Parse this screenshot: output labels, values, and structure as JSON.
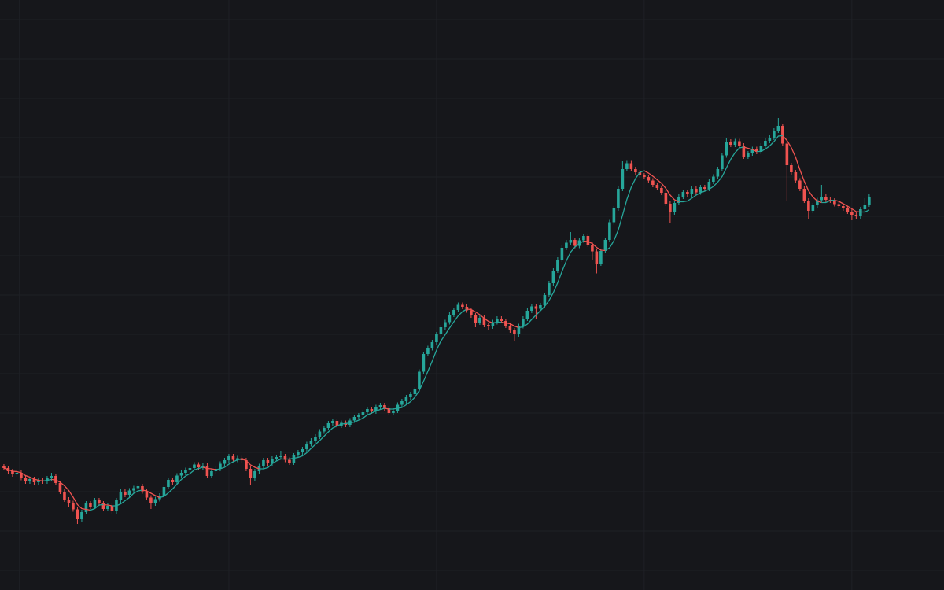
{
  "chart_data": {
    "type": "candlestick",
    "xlim": [
      -0.9,
      217.3
    ],
    "xticks": [
      3.6,
      52,
      100,
      148,
      196
    ],
    "ylim": [
      0,
      150
    ],
    "yticks": [
      5,
      15,
      25,
      35,
      45,
      55,
      65,
      75,
      85,
      95,
      105,
      115,
      125,
      135,
      145
    ],
    "grid": true,
    "background": "#16171b",
    "grid_color": "#1f2126",
    "up_color": "#26a69a",
    "down_color": "#ef5350",
    "open": [
      31.4,
      31.0,
      30.2,
      29.4,
      29.8,
      28.5,
      27.6,
      28.2,
      27.4,
      27.9,
      27.6,
      28.4,
      29.0,
      27.2,
      25.0,
      23.0,
      22.1,
      20.5,
      18.0,
      19.8,
      22.0,
      21.2,
      22.8,
      22.0,
      20.6,
      21.4,
      20.0,
      22.8,
      25.0,
      24.2,
      25.3,
      25.9,
      26.4,
      25.1,
      23.5,
      22.0,
      23.1,
      24.0,
      26.2,
      28.0,
      27.4,
      29.1,
      29.8,
      30.5,
      31.0,
      31.9,
      31.2,
      31.6,
      29.0,
      30.2,
      30.8,
      32.1,
      33.0,
      34.0,
      33.1,
      33.5,
      33.0,
      30.8,
      28.4,
      30.2,
      31.5,
      33.0,
      32.2,
      33.4,
      33.8,
      34.0,
      33.1,
      32.4,
      34.2,
      35.0,
      35.8,
      37.1,
      38.0,
      39.0,
      40.3,
      41.2,
      42.4,
      43.0,
      41.8,
      42.5,
      42.0,
      43.1,
      44.0,
      44.4,
      45.2,
      46.0,
      45.4,
      46.5,
      47.0,
      46.2,
      45.0,
      45.6,
      47.1,
      48.0,
      49.0,
      49.8,
      51.0,
      55.5,
      60.0,
      61.5,
      63.0,
      65.0,
      66.8,
      68.1,
      70.0,
      71.2,
      72.5,
      72.0,
      71.1,
      69.8,
      68.0,
      69.2,
      67.4,
      67.0,
      68.1,
      69.0,
      68.4,
      67.2,
      66.0,
      65.0,
      67.1,
      69.0,
      71.0,
      72.1,
      71.5,
      72.4,
      75.0,
      78.0,
      81.2,
      84.0,
      87.0,
      88.3,
      89.0,
      87.5,
      88.9,
      90.0,
      87.8,
      86.1,
      83.0,
      86.2,
      89.0,
      93.5,
      97.0,
      102.0,
      107.0,
      108.5,
      107.0,
      106.2,
      105.4,
      105.0,
      104.1,
      103.0,
      102.2,
      101.0,
      98.2,
      96.0,
      98.4,
      100.0,
      101.2,
      100.6,
      102.0,
      101.1,
      102.4,
      102.0,
      103.8,
      105.1,
      107.0,
      110.5,
      114.0,
      113.2,
      114.1,
      113.0,
      110.2,
      111.0,
      112.1,
      111.4,
      113.0,
      114.2,
      115.0,
      116.8,
      118.0,
      113.5,
      108.0,
      106.2,
      104.1,
      102.0,
      99.0,
      96.4,
      97.8,
      99.1,
      100.0,
      99.2,
      99.0,
      98.1,
      97.6,
      97.0,
      96.2,
      95.4,
      95.0,
      96.8,
      98.0
    ],
    "high": [
      32.0,
      31.6,
      30.8,
      30.4,
      30.4,
      29.1,
      28.8,
      28.8,
      28.5,
      28.5,
      29.0,
      29.8,
      29.6,
      27.8,
      25.6,
      23.6,
      22.7,
      21.1,
      20.4,
      22.6,
      22.6,
      23.4,
      23.4,
      22.6,
      22.0,
      22.0,
      23.4,
      25.6,
      25.6,
      25.9,
      26.5,
      27.0,
      27.0,
      25.7,
      24.1,
      23.7,
      24.6,
      26.8,
      28.6,
      28.6,
      29.7,
      30.4,
      31.1,
      31.6,
      32.5,
      32.5,
      32.2,
      32.2,
      30.8,
      31.4,
      32.7,
      33.6,
      34.6,
      34.6,
      34.1,
      34.1,
      33.6,
      31.4,
      30.8,
      32.1,
      33.6,
      33.6,
      34.0,
      34.4,
      35.4,
      34.6,
      33.7,
      34.8,
      35.6,
      36.4,
      37.7,
      38.6,
      39.6,
      40.9,
      41.8,
      43.0,
      43.6,
      43.6,
      43.1,
      43.1,
      43.7,
      44.6,
      45.0,
      45.8,
      46.6,
      46.6,
      47.1,
      47.6,
      47.6,
      46.8,
      46.2,
      47.7,
      48.6,
      49.6,
      50.4,
      51.6,
      56.1,
      60.6,
      62.1,
      63.6,
      65.6,
      67.4,
      68.7,
      70.6,
      71.8,
      73.1,
      73.1,
      72.6,
      71.7,
      70.4,
      69.8,
      69.8,
      68.0,
      68.7,
      69.6,
      69.6,
      69.0,
      67.8,
      66.6,
      67.7,
      69.6,
      71.6,
      72.7,
      72.7,
      73.0,
      75.6,
      78.6,
      81.8,
      84.6,
      87.6,
      89.0,
      91.0,
      89.6,
      89.5,
      90.6,
      90.6,
      88.4,
      86.7,
      86.8,
      89.6,
      94.1,
      97.6,
      102.6,
      109.0,
      109.1,
      109.1,
      107.6,
      106.8,
      106.0,
      105.6,
      104.7,
      103.6,
      102.8,
      101.6,
      98.8,
      99.0,
      100.6,
      101.8,
      101.8,
      102.6,
      102.6,
      103.0,
      103.0,
      104.4,
      105.7,
      107.6,
      111.1,
      115.0,
      114.6,
      114.7,
      114.7,
      113.6,
      111.6,
      112.7,
      112.7,
      113.6,
      114.8,
      115.6,
      117.4,
      120.0,
      118.6,
      114.1,
      108.6,
      106.8,
      104.7,
      102.6,
      99.6,
      98.4,
      99.7,
      103.0,
      100.6,
      99.8,
      99.6,
      98.7,
      98.2,
      97.6,
      96.8,
      96.0,
      97.4,
      99.6,
      100.6
    ],
    "low": [
      30.4,
      29.6,
      28.8,
      28.8,
      27.9,
      27.0,
      27.0,
      26.8,
      26.8,
      27.0,
      27.0,
      27.8,
      26.6,
      24.4,
      22.4,
      21.0,
      19.9,
      16.8,
      17.4,
      19.2,
      20.6,
      20.6,
      21.4,
      20.0,
      20.0,
      19.4,
      19.4,
      22.2,
      23.6,
      23.6,
      24.7,
      25.3,
      24.5,
      22.9,
      20.6,
      21.4,
      22.5,
      23.4,
      25.6,
      26.8,
      26.8,
      28.5,
      29.2,
      29.9,
      30.4,
      30.6,
      30.6,
      28.4,
      28.4,
      29.6,
      30.2,
      31.5,
      32.4,
      32.5,
      32.5,
      32.4,
      30.2,
      26.8,
      27.8,
      29.6,
      30.9,
      31.6,
      31.6,
      32.8,
      33.2,
      32.5,
      31.8,
      31.8,
      33.6,
      34.4,
      35.2,
      36.5,
      37.4,
      38.4,
      39.7,
      40.6,
      41.8,
      41.2,
      41.2,
      41.4,
      41.4,
      42.5,
      43.4,
      43.8,
      44.6,
      44.8,
      44.8,
      45.9,
      45.6,
      44.4,
      44.4,
      45.0,
      46.5,
      47.4,
      48.4,
      49.2,
      50.4,
      54.9,
      59.4,
      60.9,
      62.4,
      64.4,
      66.2,
      67.5,
      69.4,
      70.6,
      71.4,
      70.5,
      69.2,
      66.8,
      67.4,
      66.8,
      66.0,
      66.4,
      67.5,
      67.8,
      66.6,
      65.4,
      63.4,
      64.4,
      66.5,
      68.4,
      70.4,
      69.0,
      70.9,
      71.8,
      74.4,
      77.4,
      80.6,
      83.4,
      86.4,
      87.7,
      86.9,
      86.9,
      88.3,
      87.2,
      84.0,
      80.5,
      82.4,
      85.6,
      88.4,
      92.9,
      96.4,
      101.4,
      106.4,
      106.4,
      105.6,
      104.8,
      104.4,
      103.5,
      102.4,
      101.6,
      100.4,
      97.6,
      93.4,
      95.4,
      97.8,
      99.4,
      100.0,
      100.0,
      100.5,
      100.5,
      101.4,
      101.4,
      103.2,
      104.5,
      106.4,
      109.9,
      112.6,
      112.6,
      112.4,
      109.6,
      109.6,
      110.4,
      110.8,
      110.8,
      112.4,
      113.6,
      114.4,
      116.2,
      112.9,
      99.0,
      105.6,
      103.5,
      101.4,
      98.4,
      94.4,
      95.8,
      97.2,
      98.5,
      98.6,
      98.4,
      97.5,
      97.0,
      96.4,
      95.6,
      94.0,
      94.4,
      94.4,
      96.2,
      97.4
    ],
    "close": [
      31.0,
      30.2,
      29.4,
      29.8,
      28.5,
      27.6,
      28.2,
      27.4,
      27.9,
      27.6,
      28.4,
      29.0,
      27.2,
      25.0,
      23.0,
      22.1,
      20.5,
      18.0,
      19.8,
      22.0,
      21.2,
      22.8,
      22.0,
      20.6,
      21.4,
      20.0,
      22.8,
      25.0,
      24.2,
      25.3,
      25.9,
      26.4,
      25.1,
      23.5,
      22.0,
      23.1,
      24.0,
      26.2,
      28.0,
      27.4,
      29.1,
      29.8,
      30.5,
      31.0,
      31.9,
      31.2,
      31.6,
      29.0,
      30.2,
      30.8,
      32.1,
      33.0,
      34.0,
      33.1,
      33.5,
      33.0,
      30.8,
      28.4,
      30.2,
      31.5,
      33.0,
      32.2,
      33.4,
      33.8,
      34.0,
      33.1,
      32.4,
      34.2,
      35.0,
      35.8,
      37.1,
      38.0,
      39.0,
      40.3,
      41.2,
      42.4,
      43.0,
      41.8,
      42.5,
      42.0,
      43.1,
      44.0,
      44.4,
      45.2,
      46.0,
      45.4,
      46.5,
      47.0,
      46.2,
      45.0,
      45.6,
      47.1,
      48.0,
      49.0,
      49.8,
      51.0,
      55.5,
      60.0,
      61.5,
      63.0,
      65.0,
      66.8,
      68.1,
      70.0,
      71.2,
      72.5,
      72.0,
      71.1,
      69.8,
      68.0,
      69.2,
      67.4,
      67.0,
      68.1,
      69.0,
      68.4,
      67.2,
      66.0,
      65.0,
      67.1,
      69.0,
      71.0,
      72.1,
      71.5,
      72.4,
      75.0,
      78.0,
      81.2,
      84.0,
      87.0,
      88.3,
      89.0,
      87.5,
      88.9,
      90.0,
      87.8,
      86.1,
      83.0,
      86.2,
      89.0,
      93.5,
      97.0,
      102.0,
      107.0,
      108.5,
      107.0,
      106.2,
      105.4,
      105.0,
      104.1,
      103.0,
      102.2,
      101.0,
      98.2,
      96.0,
      98.4,
      100.0,
      101.2,
      100.6,
      102.0,
      101.1,
      102.4,
      102.0,
      103.8,
      105.1,
      107.0,
      110.5,
      114.0,
      113.2,
      114.1,
      113.0,
      110.2,
      111.0,
      112.1,
      111.4,
      113.0,
      114.2,
      115.0,
      116.8,
      118.0,
      113.5,
      108.0,
      106.2,
      104.1,
      102.0,
      99.0,
      96.4,
      97.8,
      99.1,
      100.0,
      99.2,
      99.0,
      98.1,
      97.6,
      97.0,
      96.2,
      95.4,
      95.0,
      96.8,
      98.0,
      100.0
    ],
    "moving_average": {
      "up_color": "#26a69a",
      "down_color": "#ef5350",
      "values": [
        31.0,
        30.6,
        30.2,
        30.1,
        29.8,
        29.1,
        28.7,
        28.2,
        27.9,
        27.7,
        27.9,
        28.1,
        28.0,
        27.4,
        26.5,
        25.3,
        23.6,
        21.7,
        20.7,
        20.5,
        20.3,
        20.7,
        21.6,
        21.7,
        21.6,
        21.4,
        21.4,
        21.9,
        22.7,
        23.5,
        24.6,
        25.2,
        25.4,
        25.2,
        24.6,
        24.0,
        23.5,
        23.8,
        24.7,
        25.7,
        26.9,
        28.1,
        29.0,
        29.6,
        30.5,
        30.9,
        31.2,
        30.9,
        30.8,
        30.6,
        30.8,
        31.2,
        32.0,
        32.6,
        33.1,
        33.3,
        32.9,
        31.8,
        31.2,
        30.8,
        30.8,
        31.1,
        32.1,
        32.8,
        33.3,
        33.3,
        33.3,
        33.5,
        33.7,
        34.1,
        34.9,
        36.0,
        37.0,
        38.0,
        39.1,
        40.2,
        41.2,
        41.7,
        42.2,
        42.3,
        42.5,
        42.7,
        43.2,
        43.7,
        44.5,
        45.0,
        45.5,
        45.9,
        46.2,
        46.0,
        46.0,
        46.2,
        46.4,
        47.1,
        47.9,
        49.0,
        50.7,
        53.1,
        55.6,
        58.2,
        61.0,
        63.3,
        64.9,
        66.6,
        68.2,
        69.7,
        70.8,
        71.4,
        71.3,
        70.7,
        70.0,
        69.1,
        68.3,
        67.9,
        68.1,
        68.1,
        67.9,
        67.7,
        67.1,
        66.7,
        66.9,
        67.6,
        68.8,
        69.9,
        71.0,
        72.1,
        73.6,
        75.6,
        78.1,
        81.0,
        83.7,
        85.9,
        87.2,
        88.1,
        88.7,
        88.6,
        88.1,
        87.1,
        86.4,
        86.3,
        87.0,
        88.8,
        91.5,
        95.3,
        99.3,
        102.4,
        104.6,
        106.2,
        106.6,
        106.0,
        105.2,
        104.3,
        103.4,
        102.1,
        100.4,
        99.2,
        98.7,
        98.7,
        98.9,
        99.6,
        100.4,
        101.0,
        101.4,
        101.9,
        102.6,
        103.7,
        105.1,
        107.3,
        109.5,
        111.2,
        112.4,
        112.6,
        112.3,
        112.0,
        111.5,
        111.5,
        112.1,
        112.9,
        114.0,
        115.4,
        115.5,
        114.3,
        112.5,
        110.0,
        106.8,
        103.9,
        101.5,
        99.9,
        98.9,
        98.5,
        98.5,
        99.0,
        99.1,
        98.8,
        98.2,
        97.6,
        96.9,
        96.2,
        96.1,
        96.1,
        96.6
      ]
    }
  }
}
